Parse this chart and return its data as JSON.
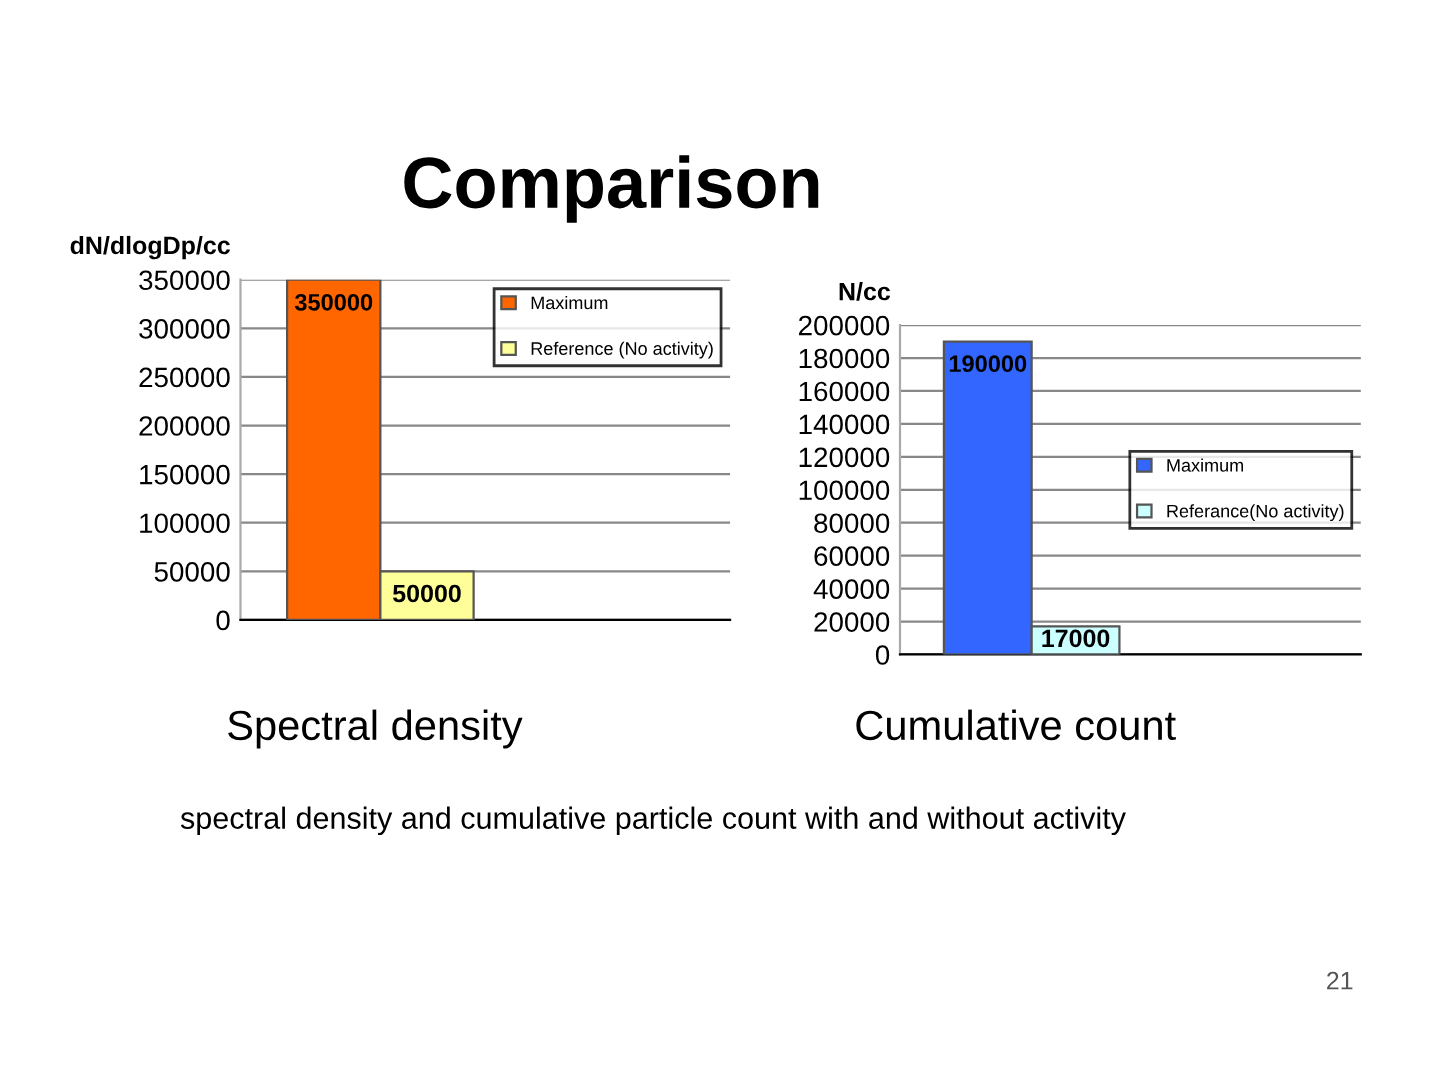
{
  "chart_data": [
    {
      "type": "bar",
      "title": "Comparison",
      "xlabel": "Spectral density",
      "ylabel": "dN/dlogDp/cc",
      "categories": [
        null
      ],
      "series": [
        {
          "name": "Maximum",
          "color": "#ff6600",
          "values": [
            350000
          ]
        },
        {
          "name": "Reference (No activity)",
          "color": "#ffff99",
          "values": [
            50000
          ]
        }
      ],
      "ylim": [
        0,
        350000
      ],
      "yticks": [
        0,
        50000,
        100000,
        150000,
        200000,
        250000,
        300000,
        350000
      ],
      "grid": "y",
      "legend": "top right",
      "data_labels": true,
      "tick_labels": "y"
    },
    {
      "type": "bar",
      "xlabel": "Cumulative count",
      "ylabel": "N/cc",
      "categories": [
        null
      ],
      "series": [
        {
          "name": "Maximum",
          "color": "#3366ff",
          "values": [
            190000
          ]
        },
        {
          "name": "Referance(No activity)",
          "color": "#ccffff",
          "values": [
            17000
          ]
        }
      ],
      "ylim": [
        0,
        200000
      ],
      "yticks": [
        0,
        20000,
        40000,
        60000,
        80000,
        100000,
        120000,
        140000,
        160000,
        180000,
        200000
      ],
      "grid": "y",
      "legend": "right",
      "data_labels": true,
      "tick_labels": "y",
      "annotations": [
        "spectral density and cumulative particle count with and without activity",
        "21"
      ]
    }
  ]
}
